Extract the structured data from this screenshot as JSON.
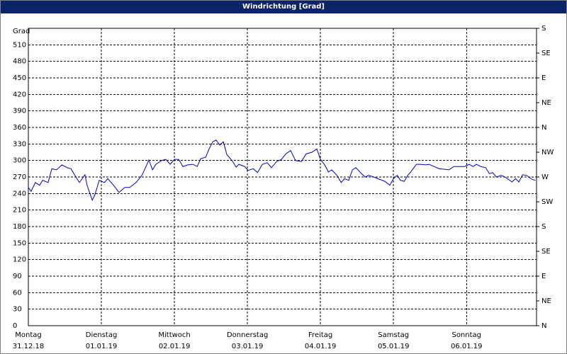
{
  "chart_data": {
    "type": "line",
    "title": "Windrichtung [Grad]",
    "ylabel": "Grad",
    "xlim": [
      0,
      167
    ],
    "xticks": [
      {
        "value": 0,
        "label": "Montag",
        "sublabel": "31.12.18"
      },
      {
        "value": 24,
        "label": "Dienstag",
        "sublabel": "01.01.19"
      },
      {
        "value": 48,
        "label": "Mittwoch",
        "sublabel": "02.01.19"
      },
      {
        "value": 72,
        "label": "Donnerstag",
        "sublabel": "03.01.19"
      },
      {
        "value": 96,
        "label": "Freitag",
        "sublabel": "04.01.19"
      },
      {
        "value": 120,
        "label": "Samstag",
        "sublabel": "05.01.19"
      },
      {
        "value": 144,
        "label": "Sonntag",
        "sublabel": "06.01.19"
      }
    ],
    "ylim": [
      0,
      540
    ],
    "yticks": [
      0,
      30,
      60,
      90,
      120,
      150,
      180,
      210,
      240,
      270,
      300,
      330,
      360,
      390,
      420,
      450,
      480,
      510
    ],
    "y2lim": [
      0,
      540
    ],
    "y2ticks": [
      {
        "value": 0,
        "label": "N"
      },
      {
        "value": 45,
        "label": "NE"
      },
      {
        "value": 90,
        "label": "E"
      },
      {
        "value": 135,
        "label": "SE"
      },
      {
        "value": 180,
        "label": "S"
      },
      {
        "value": 225,
        "label": "SW"
      },
      {
        "value": 270,
        "label": "W"
      },
      {
        "value": 315,
        "label": "NW"
      },
      {
        "value": 360,
        "label": "N"
      },
      {
        "value": 405,
        "label": "NE"
      },
      {
        "value": 450,
        "label": "E"
      },
      {
        "value": 495,
        "label": "SE"
      },
      {
        "value": 540,
        "label": "S"
      }
    ],
    "grid": true,
    "series": [
      {
        "name": "Windrichtung",
        "color": "#0000c0",
        "x": [
          0,
          0.9,
          2.3,
          3.7,
          4.7,
          6.5,
          7.7,
          9.3,
          11,
          12.8,
          14,
          15.6,
          16.8,
          18.6,
          19.3,
          21,
          21.9,
          23.3,
          25,
          26.1,
          28,
          29.8,
          31.7,
          33.3,
          35.4,
          37.3,
          38.5,
          39.6,
          40.8,
          41.9,
          43.8,
          45.2,
          46.6,
          48,
          49.4,
          50.8,
          52.4,
          54.1,
          55.5,
          56.6,
          58.3,
          59.4,
          60.6,
          61.7,
          62.9,
          64.1,
          65.2,
          66.9,
          68.3,
          69.2,
          71.1,
          72.2,
          73.9,
          75.3,
          76.9,
          78.5,
          79.9,
          81.6,
          83.2,
          84.6,
          86.2,
          87.8,
          89.7,
          91.3,
          93.2,
          94.8,
          96,
          97.4,
          98.6,
          99.7,
          101.4,
          102.8,
          103.9,
          105.3,
          106.5,
          107.6,
          109.5,
          110.7,
          111.8,
          113.5,
          115.3,
          117.2,
          118.8,
          120,
          121.2,
          122.3,
          123.5,
          124.7,
          125.8,
          127.5,
          128.9,
          130.5,
          131.7,
          133.3,
          135.1,
          136.8,
          138.2,
          139.8,
          141.4,
          143.3,
          144.9,
          146.1,
          147.3,
          148.7,
          150.3,
          151.5,
          152.6,
          153.8,
          155.4,
          156.6,
          157.7,
          158.9,
          160.1,
          161.2,
          162.4,
          163.8,
          165.4,
          166.6
        ],
        "values": [
          251,
          244,
          260,
          255,
          264,
          260,
          285,
          283,
          292,
          287,
          285,
          270,
          260,
          274,
          255,
          228,
          238,
          264,
          260,
          267,
          255,
          242,
          251,
          251,
          260,
          273,
          287,
          301,
          283,
          293,
          300,
          302,
          293,
          302,
          302,
          289,
          292,
          293,
          289,
          303,
          306,
          321,
          334,
          337,
          328,
          334,
          311,
          300,
          288,
          293,
          289,
          282,
          285,
          278,
          293,
          296,
          287,
          298,
          302,
          312,
          318,
          300,
          298,
          312,
          315,
          321,
          302,
          292,
          279,
          283,
          273,
          260,
          267,
          264,
          283,
          287,
          276,
          270,
          273,
          270,
          266,
          262,
          255,
          267,
          273,
          264,
          262,
          273,
          280,
          293,
          293,
          292,
          293,
          289,
          285,
          284,
          283,
          289,
          289,
          289,
          293,
          289,
          293,
          289,
          287,
          276,
          278,
          270,
          273,
          270,
          266,
          261,
          267,
          261,
          274,
          273,
          266,
          264
        ]
      }
    ]
  }
}
